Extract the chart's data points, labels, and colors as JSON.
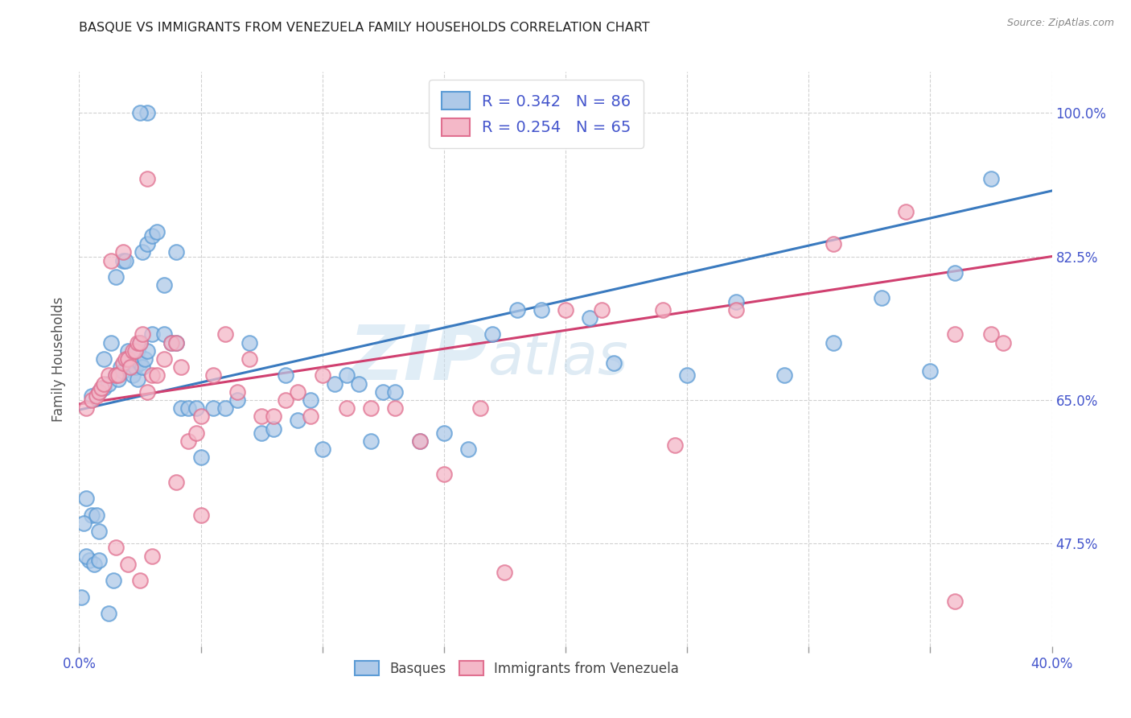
{
  "title": "BASQUE VS IMMIGRANTS FROM VENEZUELA FAMILY HOUSEHOLDS CORRELATION CHART",
  "source": "Source: ZipAtlas.com",
  "ylabel": "Family Households",
  "ylabel_ticks": [
    "47.5%",
    "65.0%",
    "82.5%",
    "100.0%"
  ],
  "ylabel_tick_values": [
    0.475,
    0.65,
    0.825,
    1.0
  ],
  "watermark_zip": "ZIP",
  "watermark_atlas": "atlas",
  "legend_blue_r": "R = 0.342",
  "legend_blue_n": "N = 86",
  "legend_pink_r": "R = 0.254",
  "legend_pink_n": "N = 65",
  "legend_label_blue": "Basques",
  "legend_label_pink": "Immigrants from Venezuela",
  "blue_fill": "#aec9e8",
  "pink_fill": "#f4b8c8",
  "blue_edge": "#5b9bd5",
  "pink_edge": "#e07090",
  "line_blue_color": "#3a7abf",
  "line_pink_color": "#d04070",
  "bg_color": "#ffffff",
  "title_color": "#222222",
  "axis_label_color": "#4455cc",
  "grid_color": "#cccccc",
  "xmin": 0.0,
  "xmax": 0.4,
  "ymin": 0.35,
  "ymax": 1.05,
  "blue_line_x0": 0.0,
  "blue_line_y0": 0.638,
  "blue_line_x1": 0.4,
  "blue_line_y1": 0.905,
  "pink_line_x0": 0.0,
  "pink_line_y0": 0.645,
  "pink_line_x1": 0.4,
  "pink_line_y1": 0.825,
  "blue_dots_x": [
    0.005,
    0.008,
    0.01,
    0.01,
    0.012,
    0.013,
    0.015,
    0.015,
    0.016,
    0.017,
    0.018,
    0.018,
    0.019,
    0.02,
    0.02,
    0.021,
    0.022,
    0.022,
    0.023,
    0.024,
    0.024,
    0.025,
    0.025,
    0.026,
    0.026,
    0.027,
    0.028,
    0.028,
    0.03,
    0.03,
    0.032,
    0.035,
    0.035,
    0.038,
    0.04,
    0.04,
    0.042,
    0.045,
    0.048,
    0.05,
    0.055,
    0.06,
    0.065,
    0.07,
    0.075,
    0.08,
    0.085,
    0.09,
    0.095,
    0.1,
    0.105,
    0.11,
    0.115,
    0.12,
    0.125,
    0.13,
    0.14,
    0.15,
    0.16,
    0.17,
    0.18,
    0.19,
    0.21,
    0.22,
    0.25,
    0.27,
    0.29,
    0.31,
    0.33,
    0.35,
    0.36,
    0.375,
    0.003,
    0.005,
    0.007,
    0.008,
    0.004,
    0.002,
    0.001,
    0.003,
    0.006,
    0.008,
    0.012,
    0.014,
    0.028,
    0.025
  ],
  "blue_dots_y": [
    0.655,
    0.66,
    0.665,
    0.7,
    0.67,
    0.72,
    0.68,
    0.8,
    0.675,
    0.69,
    0.685,
    0.82,
    0.82,
    0.7,
    0.71,
    0.695,
    0.7,
    0.68,
    0.69,
    0.71,
    0.675,
    0.72,
    0.695,
    0.69,
    0.83,
    0.7,
    0.71,
    0.84,
    0.85,
    0.73,
    0.855,
    0.79,
    0.73,
    0.72,
    0.72,
    0.83,
    0.64,
    0.64,
    0.64,
    0.58,
    0.64,
    0.64,
    0.65,
    0.72,
    0.61,
    0.615,
    0.68,
    0.625,
    0.65,
    0.59,
    0.67,
    0.68,
    0.67,
    0.6,
    0.66,
    0.66,
    0.6,
    0.61,
    0.59,
    0.73,
    0.76,
    0.76,
    0.75,
    0.695,
    0.68,
    0.77,
    0.68,
    0.72,
    0.775,
    0.685,
    0.805,
    0.92,
    0.53,
    0.51,
    0.51,
    0.49,
    0.455,
    0.5,
    0.41,
    0.46,
    0.45,
    0.455,
    0.39,
    0.43,
    1.0,
    1.0
  ],
  "pink_dots_x": [
    0.003,
    0.005,
    0.007,
    0.008,
    0.009,
    0.01,
    0.012,
    0.013,
    0.015,
    0.016,
    0.018,
    0.018,
    0.019,
    0.02,
    0.021,
    0.022,
    0.023,
    0.024,
    0.025,
    0.026,
    0.028,
    0.03,
    0.032,
    0.035,
    0.038,
    0.04,
    0.042,
    0.045,
    0.048,
    0.05,
    0.055,
    0.06,
    0.065,
    0.07,
    0.075,
    0.08,
    0.085,
    0.09,
    0.095,
    0.1,
    0.11,
    0.12,
    0.13,
    0.14,
    0.15,
    0.165,
    0.175,
    0.2,
    0.215,
    0.24,
    0.27,
    0.31,
    0.34,
    0.36,
    0.375,
    0.015,
    0.02,
    0.025,
    0.03,
    0.04,
    0.028,
    0.05,
    0.38,
    0.36,
    0.245
  ],
  "pink_dots_y": [
    0.64,
    0.65,
    0.655,
    0.66,
    0.665,
    0.67,
    0.68,
    0.82,
    0.68,
    0.68,
    0.695,
    0.83,
    0.7,
    0.7,
    0.69,
    0.71,
    0.71,
    0.72,
    0.72,
    0.73,
    0.66,
    0.68,
    0.68,
    0.7,
    0.72,
    0.72,
    0.69,
    0.6,
    0.61,
    0.63,
    0.68,
    0.73,
    0.66,
    0.7,
    0.63,
    0.63,
    0.65,
    0.66,
    0.63,
    0.68,
    0.64,
    0.64,
    0.64,
    0.6,
    0.56,
    0.64,
    0.44,
    0.76,
    0.76,
    0.76,
    0.76,
    0.84,
    0.88,
    0.73,
    0.73,
    0.47,
    0.45,
    0.43,
    0.46,
    0.55,
    0.92,
    0.51,
    0.72,
    0.405,
    0.595
  ]
}
